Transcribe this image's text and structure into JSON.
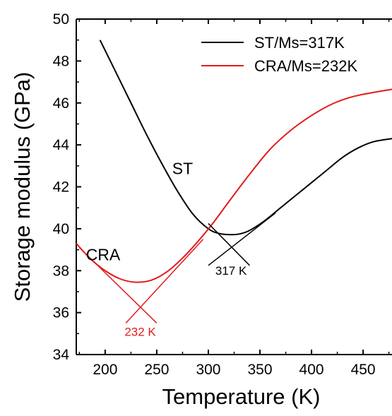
{
  "chart_data": {
    "type": "line",
    "xlabel": "Temperature (K)",
    "ylabel": "Storage modulus (GPa)",
    "xlim": [
      172,
      478
    ],
    "ylim": [
      34,
      50
    ],
    "xticks": [
      200,
      250,
      300,
      350,
      400,
      450
    ],
    "yticks": [
      34,
      36,
      38,
      40,
      42,
      44,
      46,
      48,
      50
    ],
    "legend_position": "top-right",
    "grid": false,
    "series": [
      {
        "name": "ST/Ms=317K",
        "color": "#000000",
        "x": [
          195,
          210,
          225,
          240,
          255,
          270,
          285,
          300,
          310,
          320,
          330,
          340,
          355,
          370,
          385,
          400,
          415,
          430,
          445,
          460,
          478
        ],
        "y": [
          49.0,
          47.5,
          46.0,
          44.5,
          43.1,
          41.8,
          40.7,
          40.0,
          39.78,
          39.72,
          39.75,
          39.92,
          40.4,
          41.0,
          41.6,
          42.2,
          42.8,
          43.4,
          43.85,
          44.15,
          44.3
        ]
      },
      {
        "name": "CRA/Ms=232K",
        "color": "#e31a1c",
        "x": [
          172,
          185,
          200,
          215,
          230,
          245,
          260,
          275,
          290,
          305,
          320,
          340,
          360,
          380,
          400,
          420,
          440,
          460,
          478
        ],
        "y": [
          39.3,
          38.6,
          38.0,
          37.6,
          37.45,
          37.55,
          37.95,
          38.6,
          39.4,
          40.3,
          41.3,
          42.6,
          43.8,
          44.7,
          45.4,
          45.95,
          46.3,
          46.5,
          46.65
        ]
      }
    ],
    "tangent_lines": [
      {
        "color": "#000000",
        "x": [
          300,
          340
        ],
        "y": [
          40.25,
          38.25
        ]
      },
      {
        "color": "#000000",
        "x": [
          300,
          365
        ],
        "y": [
          38.25,
          40.75
        ]
      },
      {
        "color": "#e31a1c",
        "x": [
          175,
          250
        ],
        "y": [
          39.1,
          35.5
        ]
      },
      {
        "color": "#e31a1c",
        "x": [
          220,
          295
        ],
        "y": [
          35.5,
          39.5
        ]
      }
    ],
    "annotations": [
      {
        "text": "ST",
        "color": "#000000",
        "x": 275,
        "y": 42.6,
        "size": "large"
      },
      {
        "text": "CRA",
        "color": "#000000",
        "x": 198,
        "y": 38.5,
        "size": "large"
      },
      {
        "text": "317 K",
        "color": "#000000",
        "x": 322,
        "y": 37.8,
        "size": "small"
      },
      {
        "text": "232 K",
        "color": "#e31a1c",
        "x": 234,
        "y": 34.9,
        "size": "small"
      }
    ]
  }
}
